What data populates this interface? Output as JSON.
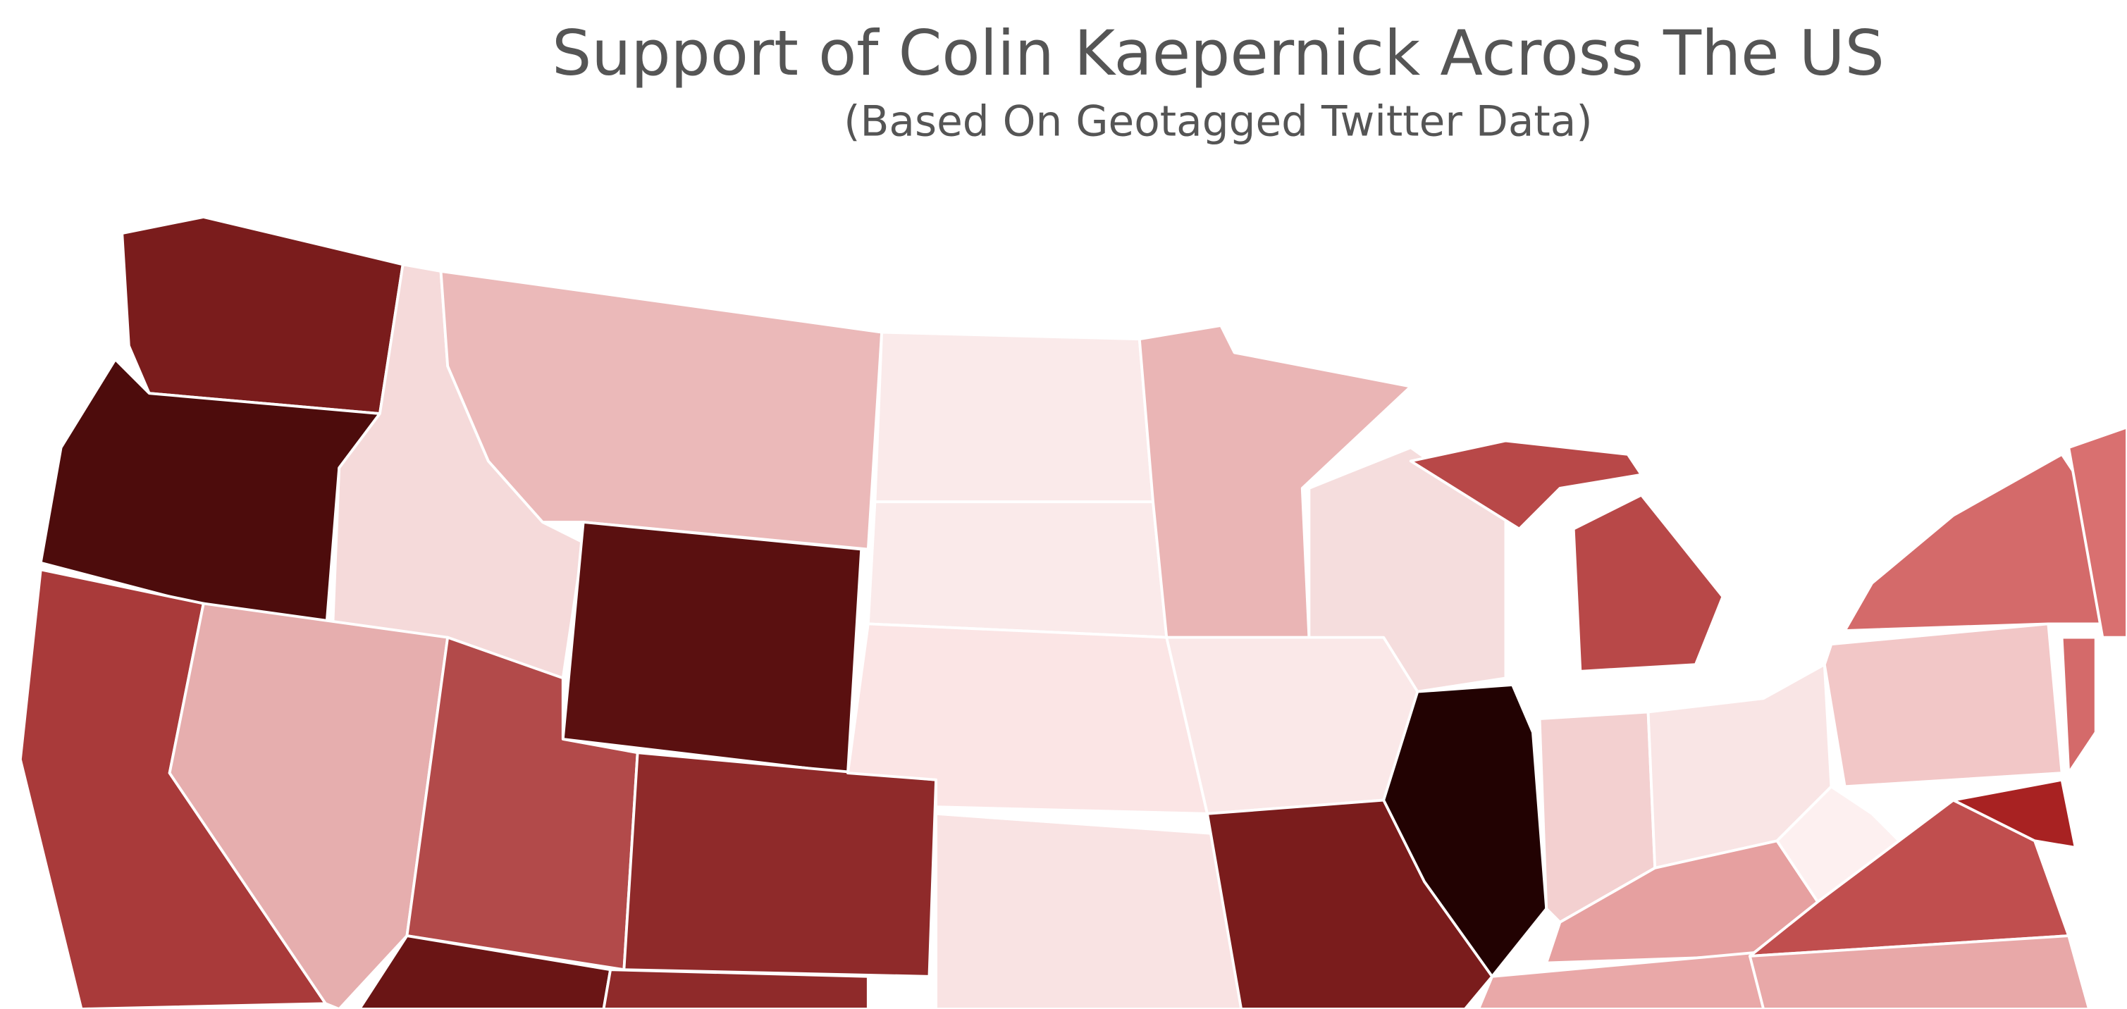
{
  "title": "Support of Colin Kaepernick Across The US",
  "subtitle": "(Based On Geotagged Twitter Data)"
}
